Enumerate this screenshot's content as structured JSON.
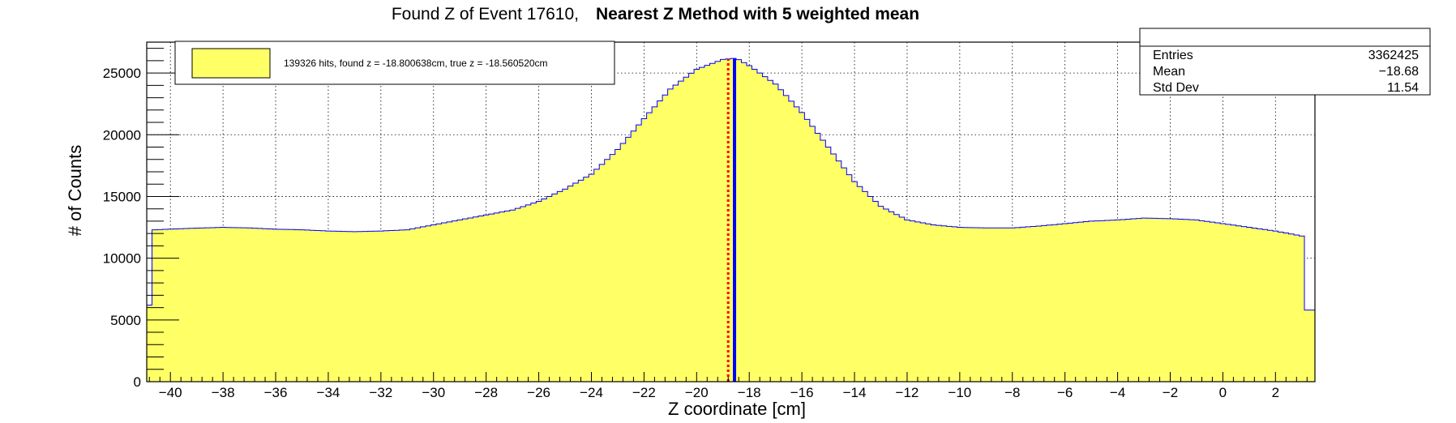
{
  "title": {
    "normal": "Found Z of Event 17610,",
    "bold": "Nearest Z Method with 5 weighted mean"
  },
  "stats": {
    "rows": [
      {
        "label": "Entries",
        "value": "3362425"
      },
      {
        "label": "Mean",
        "value": "−18.68"
      },
      {
        "label": "Std Dev",
        "value": "11.54"
      }
    ]
  },
  "legend": {
    "text": "139326 hits, found z = -18.800638cm, true z = -18.560520cm"
  },
  "colors": {
    "fill": "#ffff66",
    "outline": "#0000ff",
    "found_line": "#0000ff",
    "true_line": "#ff0000"
  },
  "chart_data": {
    "type": "bar",
    "histogram": true,
    "xlabel": "Z coordinate [cm]",
    "ylabel": "# of Counts",
    "xlim": [
      -40.9,
      3.5
    ],
    "ylim": [
      0,
      27500
    ],
    "grid": true,
    "legend_position": "top-left",
    "xticks": [
      -40,
      -38,
      -36,
      -34,
      -32,
      -30,
      -28,
      -26,
      -24,
      -22,
      -20,
      -18,
      -16,
      -14,
      -12,
      -10,
      -8,
      -6,
      -4,
      -2,
      0,
      2
    ],
    "xtick_labels": [
      "−40",
      "−38",
      "−36",
      "−34",
      "−32",
      "−30",
      "−28",
      "−26",
      "−24",
      "−22",
      "−20",
      "−18",
      "−16",
      "−14",
      "−12",
      "−10",
      "−8",
      "−6",
      "−4",
      "−2",
      "0",
      "2"
    ],
    "yticks": [
      0,
      5000,
      10000,
      15000,
      20000,
      25000
    ],
    "ytick_labels": [
      "0",
      "5000",
      "10000",
      "15000",
      "20000",
      "25000"
    ],
    "bin_width": 0.2,
    "curve_points": [
      [
        -40.9,
        6200
      ],
      [
        -40.6,
        6200
      ],
      [
        -40.6,
        12300
      ],
      [
        -39.5,
        12400
      ],
      [
        -38.0,
        12500
      ],
      [
        -37.0,
        12450
      ],
      [
        -36.0,
        12350
      ],
      [
        -35.0,
        12300
      ],
      [
        -34.0,
        12200
      ],
      [
        -33.0,
        12150
      ],
      [
        -32.0,
        12200
      ],
      [
        -31.0,
        12300
      ],
      [
        -30.0,
        12700
      ],
      [
        -29.0,
        13100
      ],
      [
        -28.0,
        13500
      ],
      [
        -27.0,
        13900
      ],
      [
        -26.0,
        14600
      ],
      [
        -25.0,
        15600
      ],
      [
        -24.0,
        16800
      ],
      [
        -23.0,
        18800
      ],
      [
        -22.0,
        21300
      ],
      [
        -21.0,
        23700
      ],
      [
        -20.0,
        25300
      ],
      [
        -19.0,
        26100
      ],
      [
        -18.5,
        26200
      ],
      [
        -18.0,
        25600
      ],
      [
        -17.0,
        24100
      ],
      [
        -16.0,
        21800
      ],
      [
        -15.0,
        19000
      ],
      [
        -14.0,
        16200
      ],
      [
        -13.0,
        14200
      ],
      [
        -12.0,
        13100
      ],
      [
        -11.0,
        12700
      ],
      [
        -10.0,
        12500
      ],
      [
        -9.0,
        12450
      ],
      [
        -8.0,
        12450
      ],
      [
        -7.0,
        12600
      ],
      [
        -6.0,
        12800
      ],
      [
        -5.0,
        13000
      ],
      [
        -4.0,
        13100
      ],
      [
        -3.0,
        13250
      ],
      [
        -2.0,
        13200
      ],
      [
        -1.0,
        13100
      ],
      [
        0.0,
        12800
      ],
      [
        1.0,
        12500
      ],
      [
        2.0,
        12200
      ],
      [
        3.0,
        11800
      ],
      [
        3.2,
        11800
      ],
      [
        3.2,
        5800
      ],
      [
        3.5,
        5800
      ]
    ],
    "found_z": -18.800638,
    "true_z": -18.56052
  }
}
